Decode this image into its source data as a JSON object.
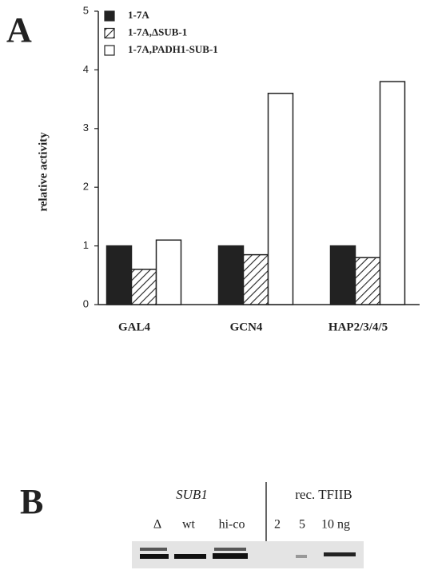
{
  "panel_a": {
    "label": "A"
  },
  "chart_data": {
    "type": "bar",
    "y_label": "relative activity",
    "categories": [
      "GAL4",
      "GCN4",
      "HAP2/3/4/5"
    ],
    "series": [
      {
        "name": "1-7A",
        "color": "#222222",
        "hatch": false,
        "values": [
          1.0,
          1.0,
          1.0
        ]
      },
      {
        "name": "1-7A,ΔSUB-1",
        "color": "#ffffff",
        "hatch": true,
        "values": [
          0.6,
          0.85,
          0.8
        ]
      },
      {
        "name": "1-7A,PADH1-SUB-1",
        "color": "#ffffff",
        "hatch": false,
        "values": [
          1.1,
          3.6,
          3.8
        ]
      }
    ],
    "ylim": [
      0,
      5
    ],
    "yticks": [
      0,
      1,
      2,
      3,
      4,
      5
    ],
    "grid": false,
    "legend": "top-left"
  },
  "panel_b": {
    "label": "B",
    "group1": "SUB1",
    "group2": "rec. TFIIB",
    "lanes": [
      "Δ",
      "wt",
      "hi-co",
      "2",
      "5",
      "10 ng"
    ]
  }
}
